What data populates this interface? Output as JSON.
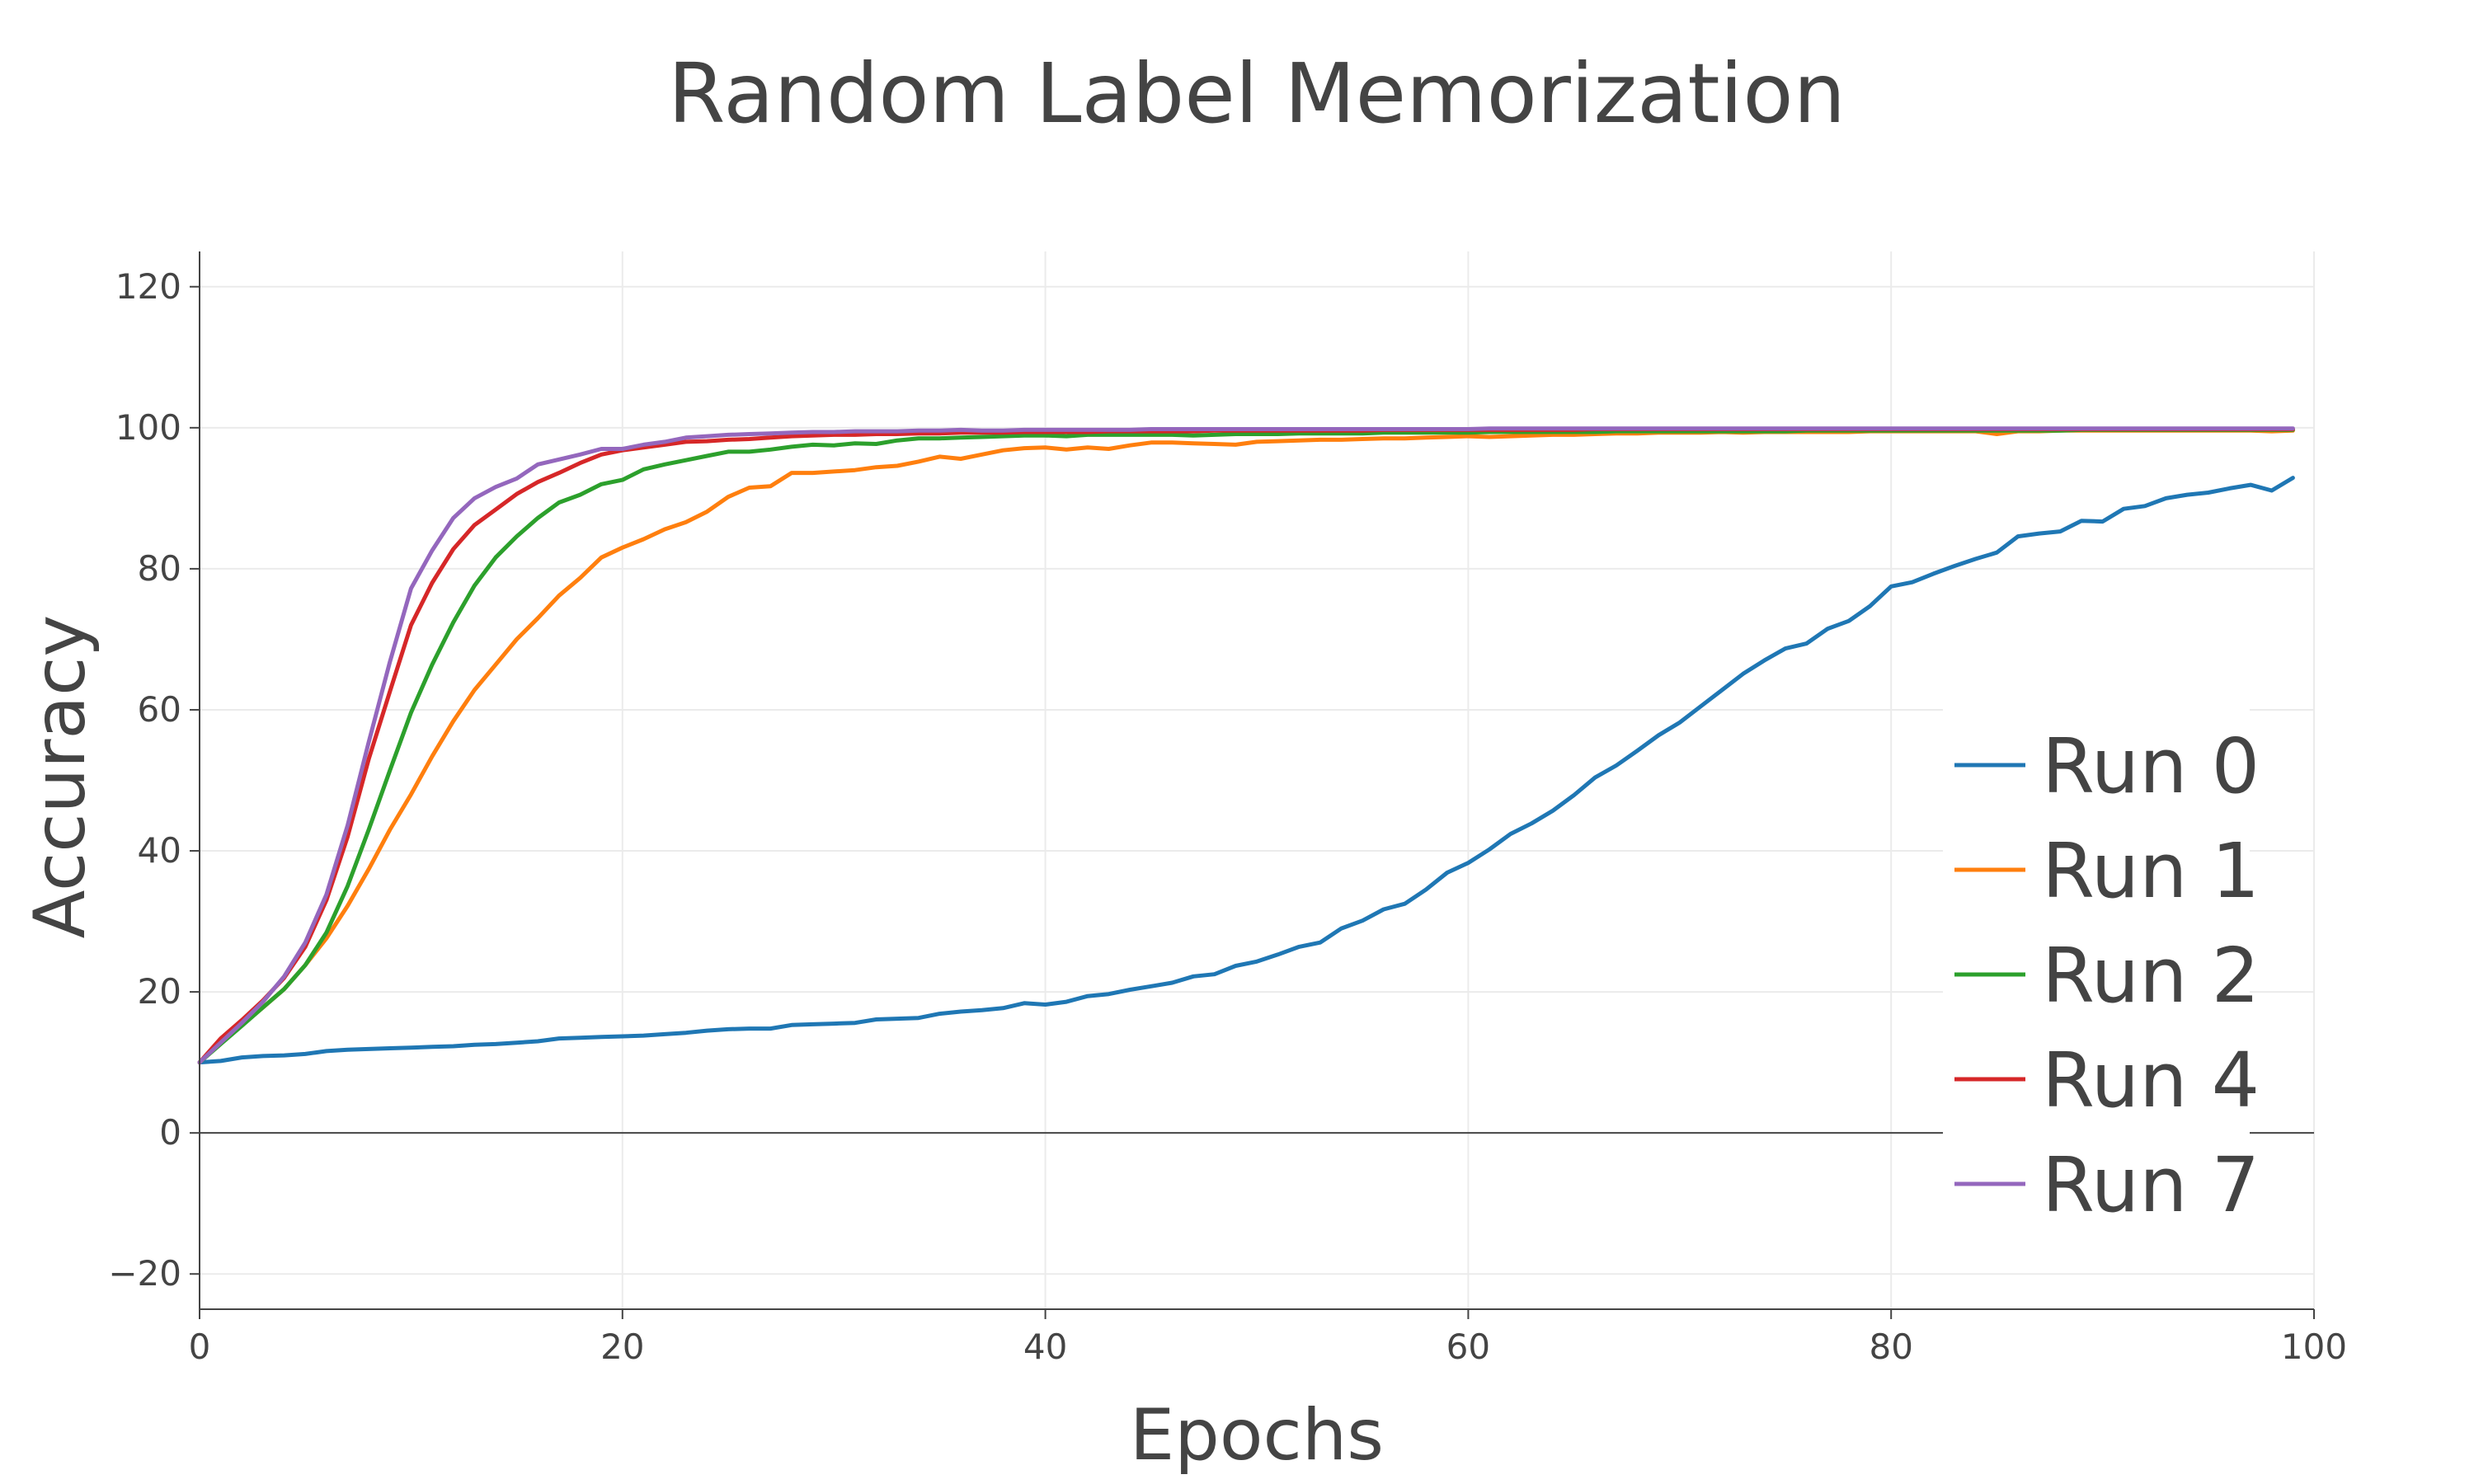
{
  "chart_data": {
    "type": "line",
    "title": "Random Label Memorization",
    "xlabel": "Epochs",
    "ylabel": "Accuracy",
    "xlim": [
      0,
      100
    ],
    "ylim": [
      -25,
      125
    ],
    "x_ticks": [
      0,
      20,
      40,
      60,
      80,
      100
    ],
    "y_ticks": [
      -20,
      0,
      20,
      40,
      60,
      80,
      100,
      120
    ],
    "grid": true,
    "legend_position": "bottom-right",
    "series": [
      {
        "name": "Run 0",
        "color": "#1f77b4",
        "x": [
          0,
          1,
          2,
          3,
          4,
          5,
          6,
          7,
          8,
          9,
          10,
          11,
          12,
          13,
          14,
          15,
          16,
          17,
          18,
          19,
          20,
          21,
          22,
          23,
          24,
          25,
          26,
          27,
          28,
          29,
          30,
          31,
          32,
          33,
          34,
          35,
          36,
          37,
          38,
          39,
          40,
          41,
          42,
          43,
          44,
          45,
          46,
          47,
          48,
          49,
          50,
          51,
          52,
          53,
          54,
          55,
          56,
          57,
          58,
          59,
          60,
          61,
          62,
          63,
          64,
          65,
          66,
          67,
          68,
          69,
          70,
          71,
          72,
          73,
          74,
          75,
          76,
          77,
          78,
          79,
          80,
          81,
          82,
          83,
          84,
          85,
          86,
          87,
          88,
          89,
          90,
          91,
          92,
          93,
          94,
          95,
          96,
          97,
          98,
          99
        ],
        "values": [
          10.0,
          10.2,
          10.7,
          10.9,
          11.0,
          11.2,
          11.6,
          11.8,
          11.9,
          12.0,
          12.1,
          12.2,
          12.3,
          12.5,
          12.6,
          12.8,
          13.0,
          13.4,
          13.5,
          13.6,
          13.7,
          13.8,
          14.0,
          14.2,
          14.5,
          14.7,
          14.8,
          14.8,
          15.3,
          15.4,
          15.5,
          15.6,
          16.1,
          16.2,
          16.3,
          16.9,
          17.2,
          17.4,
          17.7,
          18.4,
          18.2,
          18.6,
          19.4,
          19.7,
          20.3,
          20.8,
          21.3,
          22.2,
          22.5,
          23.7,
          24.3,
          25.3,
          26.4,
          27.0,
          29.0,
          30.1,
          31.7,
          32.5,
          34.5,
          36.9,
          38.3,
          40.2,
          42.4,
          43.9,
          45.7,
          47.9,
          50.4,
          52.1,
          54.2,
          56.4,
          58.2,
          60.5,
          62.8,
          65.1,
          67.0,
          68.7,
          69.4,
          71.5,
          72.6,
          74.7,
          77.5,
          78.1,
          79.3,
          80.4,
          81.4,
          82.3,
          84.6,
          85.0,
          85.3,
          86.8,
          86.7,
          88.5,
          88.9,
          90.0,
          90.5,
          90.8,
          91.4,
          91.9,
          91.1,
          92.9
        ]
      },
      {
        "name": "Run 1",
        "color": "#ff7f0e",
        "x": [
          0,
          1,
          2,
          3,
          4,
          5,
          6,
          7,
          8,
          9,
          10,
          11,
          12,
          13,
          14,
          15,
          16,
          17,
          18,
          19,
          20,
          21,
          22,
          23,
          24,
          25,
          26,
          27,
          28,
          29,
          30,
          31,
          32,
          33,
          34,
          35,
          36,
          37,
          38,
          39,
          40,
          41,
          42,
          43,
          44,
          45,
          46,
          47,
          48,
          49,
          50,
          51,
          52,
          53,
          54,
          55,
          56,
          57,
          58,
          59,
          60,
          61,
          62,
          63,
          64,
          65,
          66,
          67,
          68,
          69,
          70,
          71,
          72,
          73,
          74,
          75,
          76,
          77,
          78,
          79,
          80,
          81,
          82,
          83,
          84,
          85,
          86,
          87,
          88,
          89,
          90,
          91,
          92,
          93,
          94,
          95,
          96,
          97,
          98,
          99
        ],
        "values": [
          10.0,
          12.8,
          15.3,
          17.8,
          20.4,
          23.8,
          27.6,
          32.2,
          37.4,
          43.0,
          48.0,
          53.4,
          58.4,
          62.8,
          66.4,
          70.0,
          73.0,
          76.2,
          78.7,
          81.6,
          83.0,
          84.2,
          85.6,
          86.6,
          88.1,
          90.2,
          91.5,
          91.7,
          93.6,
          93.6,
          93.8,
          94.0,
          94.4,
          94.6,
          95.2,
          95.9,
          95.6,
          96.2,
          96.8,
          97.1,
          97.2,
          96.9,
          97.2,
          97.0,
          97.5,
          97.9,
          97.9,
          97.8,
          97.7,
          97.6,
          98.0,
          98.1,
          98.2,
          98.3,
          98.3,
          98.4,
          98.5,
          98.5,
          98.6,
          98.7,
          98.8,
          98.7,
          98.8,
          98.9,
          99.0,
          99.0,
          99.1,
          99.2,
          99.2,
          99.3,
          99.3,
          99.3,
          99.4,
          99.3,
          99.4,
          99.4,
          99.4,
          99.4,
          99.4,
          99.5,
          99.5,
          99.5,
          99.5,
          99.5,
          99.5,
          99.1,
          99.5,
          99.5,
          99.6,
          99.6,
          99.6,
          99.6,
          99.6,
          99.6,
          99.6,
          99.6,
          99.6,
          99.6,
          99.5,
          99.6
        ]
      },
      {
        "name": "Run 2",
        "color": "#2ca02c",
        "x": [
          0,
          1,
          2,
          3,
          4,
          5,
          6,
          7,
          8,
          9,
          10,
          11,
          12,
          13,
          14,
          15,
          16,
          17,
          18,
          19,
          20,
          21,
          22,
          23,
          24,
          25,
          26,
          27,
          28,
          29,
          30,
          31,
          32,
          33,
          34,
          35,
          36,
          37,
          38,
          39,
          40,
          41,
          42,
          43,
          44,
          45,
          46,
          47,
          48,
          49,
          50,
          51,
          52,
          53,
          54,
          55,
          56,
          57,
          58,
          59,
          60,
          61,
          62,
          63,
          64,
          65,
          66,
          67,
          68,
          69,
          70,
          71,
          72,
          73,
          74,
          75,
          76,
          77,
          78,
          79,
          80,
          81,
          82,
          83,
          84,
          85,
          86,
          87,
          88,
          89,
          90,
          91,
          92,
          93,
          94,
          95,
          96,
          97,
          98,
          99
        ],
        "values": [
          10.0,
          12.6,
          15.2,
          17.8,
          20.4,
          23.8,
          28.4,
          35.0,
          43.0,
          51.4,
          59.6,
          66.4,
          72.4,
          77.6,
          81.6,
          84.6,
          87.2,
          89.4,
          90.5,
          92.0,
          92.6,
          94.1,
          94.8,
          95.4,
          96.0,
          96.6,
          96.6,
          96.9,
          97.3,
          97.6,
          97.5,
          97.8,
          97.7,
          98.2,
          98.5,
          98.5,
          98.6,
          98.7,
          98.8,
          98.9,
          98.9,
          98.8,
          99.0,
          99.0,
          99.0,
          99.0,
          99.0,
          98.9,
          99.0,
          99.1,
          99.1,
          99.1,
          99.2,
          99.2,
          99.2,
          99.2,
          99.3,
          99.3,
          99.3,
          99.3,
          99.3,
          99.4,
          99.4,
          99.4,
          99.4,
          99.4,
          99.4,
          99.5,
          99.5,
          99.5,
          99.5,
          99.5,
          99.5,
          99.5,
          99.5,
          99.5,
          99.6,
          99.6,
          99.6,
          99.6,
          99.6,
          99.6,
          99.6,
          99.6,
          99.6,
          99.6,
          99.6,
          99.6,
          99.6,
          99.7,
          99.7,
          99.7,
          99.7,
          99.7,
          99.7,
          99.7,
          99.7,
          99.7,
          99.7,
          99.7
        ]
      },
      {
        "name": "Run 4",
        "color": "#d62728",
        "x": [
          0,
          1,
          2,
          3,
          4,
          5,
          6,
          7,
          8,
          9,
          10,
          11,
          12,
          13,
          14,
          15,
          16,
          17,
          18,
          19,
          20,
          21,
          22,
          23,
          24,
          25,
          26,
          27,
          28,
          29,
          30,
          31,
          32,
          33,
          34,
          35,
          36,
          37,
          38,
          39,
          40,
          41,
          42,
          43,
          44,
          45,
          46,
          47,
          48,
          49,
          50,
          51,
          52,
          53,
          54,
          55,
          56,
          57,
          58,
          59,
          60,
          61,
          62,
          63,
          64,
          65,
          66,
          67,
          68,
          69,
          70,
          71,
          72,
          73,
          74,
          75,
          76,
          77,
          78,
          79,
          80,
          81,
          82,
          83,
          84,
          85,
          86,
          87,
          88,
          89,
          90,
          91,
          92,
          93,
          94,
          95,
          96,
          97,
          98,
          99
        ],
        "values": [
          10.0,
          13.4,
          16.0,
          18.8,
          22.0,
          26.4,
          33.0,
          42.0,
          53.0,
          62.6,
          72.0,
          78.0,
          82.8,
          86.2,
          88.4,
          90.6,
          92.3,
          93.6,
          95.0,
          96.2,
          96.8,
          97.2,
          97.6,
          98.0,
          98.1,
          98.3,
          98.4,
          98.6,
          98.8,
          98.9,
          99.0,
          99.0,
          99.1,
          99.1,
          99.2,
          99.2,
          99.3,
          99.3,
          99.3,
          99.4,
          99.4,
          99.4,
          99.4,
          99.5,
          99.5,
          99.5,
          99.5,
          99.5,
          99.6,
          99.6,
          99.6,
          99.6,
          99.6,
          99.6,
          99.6,
          99.6,
          99.7,
          99.7,
          99.7,
          99.7,
          99.7,
          99.7,
          99.7,
          99.7,
          99.7,
          99.7,
          99.8,
          99.8,
          99.8,
          99.8,
          99.8,
          99.8,
          99.8,
          99.8,
          99.8,
          99.8,
          99.8,
          99.8,
          99.8,
          99.8,
          99.8,
          99.8,
          99.8,
          99.8,
          99.8,
          99.8,
          99.8,
          99.8,
          99.8,
          99.8,
          99.8,
          99.8,
          99.8,
          99.8,
          99.8,
          99.8,
          99.8,
          99.8,
          99.8,
          99.8
        ]
      },
      {
        "name": "Run 7",
        "color": "#9467bd",
        "x": [
          0,
          1,
          2,
          3,
          4,
          5,
          6,
          7,
          8,
          9,
          10,
          11,
          12,
          13,
          14,
          15,
          16,
          17,
          18,
          19,
          20,
          21,
          22,
          23,
          24,
          25,
          26,
          27,
          28,
          29,
          30,
          31,
          32,
          33,
          34,
          35,
          36,
          37,
          38,
          39,
          40,
          41,
          42,
          43,
          44,
          45,
          46,
          47,
          48,
          49,
          50,
          51,
          52,
          53,
          54,
          55,
          56,
          57,
          58,
          59,
          60,
          61,
          62,
          63,
          64,
          65,
          66,
          67,
          68,
          69,
          70,
          71,
          72,
          73,
          74,
          75,
          76,
          77,
          78,
          79,
          80,
          81,
          82,
          83,
          84,
          85,
          86,
          87,
          88,
          89,
          90,
          91,
          92,
          93,
          94,
          95,
          96,
          97,
          98,
          99
        ],
        "values": [
          10.0,
          12.8,
          15.6,
          18.6,
          22.2,
          27.0,
          33.8,
          43.6,
          55.4,
          66.8,
          77.2,
          82.6,
          87.2,
          90.0,
          91.6,
          92.8,
          94.8,
          95.5,
          96.2,
          97.0,
          97.0,
          97.6,
          98.0,
          98.6,
          98.8,
          99.0,
          99.1,
          99.2,
          99.3,
          99.4,
          99.4,
          99.5,
          99.5,
          99.5,
          99.6,
          99.6,
          99.7,
          99.6,
          99.6,
          99.7,
          99.7,
          99.7,
          99.7,
          99.7,
          99.7,
          99.8,
          99.8,
          99.8,
          99.8,
          99.8,
          99.8,
          99.8,
          99.8,
          99.8,
          99.8,
          99.8,
          99.8,
          99.8,
          99.8,
          99.8,
          99.8,
          99.9,
          99.9,
          99.9,
          99.9,
          99.9,
          99.9,
          99.9,
          99.9,
          99.9,
          99.9,
          99.9,
          99.9,
          99.9,
          99.9,
          99.9,
          99.9,
          99.9,
          99.9,
          99.9,
          99.9,
          99.9,
          99.9,
          99.9,
          99.9,
          99.9,
          99.9,
          99.9,
          99.9,
          99.9,
          99.9,
          99.9,
          99.9,
          99.9,
          99.9,
          99.9,
          99.9,
          99.9,
          99.9,
          99.9
        ]
      }
    ]
  }
}
